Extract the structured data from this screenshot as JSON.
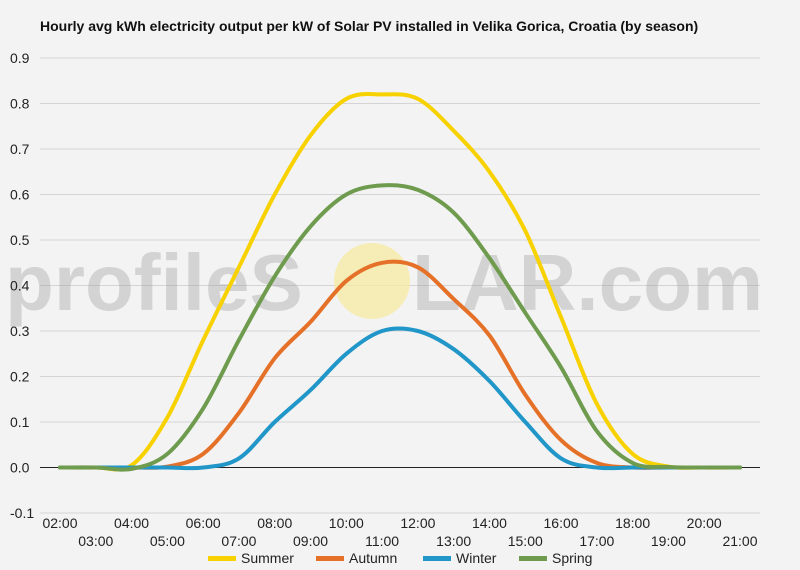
{
  "chart_data": {
    "type": "line",
    "title": "Hourly avg kWh electricity output per kW of Solar PV installed in Velika Gorica, Croatia (by season)",
    "xlabel": "",
    "ylabel": "",
    "x": [
      "02:00",
      "03:00",
      "04:00",
      "05:00",
      "06:00",
      "07:00",
      "08:00",
      "09:00",
      "10:00",
      "11:00",
      "12:00",
      "13:00",
      "14:00",
      "15:00",
      "16:00",
      "17:00",
      "18:00",
      "19:00",
      "20:00",
      "21:00"
    ],
    "xlim": [
      "02:00",
      "21:00"
    ],
    "ylim": [
      -0.1,
      0.9
    ],
    "yticks": [
      "-0.1",
      "0.0",
      "0.1",
      "0.2",
      "0.3",
      "0.4",
      "0.5",
      "0.6",
      "0.7",
      "0.8",
      "0.9"
    ],
    "xticks_upper": [
      "02:00",
      "04:00",
      "06:00",
      "08:00",
      "10:00",
      "12:00",
      "14:00",
      "16:00",
      "18:00",
      "20:00"
    ],
    "xticks_lower": [
      "03:00",
      "05:00",
      "07:00",
      "09:00",
      "11:00",
      "13:00",
      "15:00",
      "17:00",
      "19:00",
      "21:00"
    ],
    "grid": true,
    "legend_position": "bottom",
    "series": [
      {
        "name": "Summer",
        "color": "#f8d100",
        "values": [
          0.0,
          0.0,
          0.005,
          0.11,
          0.28,
          0.44,
          0.6,
          0.73,
          0.81,
          0.82,
          0.81,
          0.74,
          0.65,
          0.52,
          0.33,
          0.14,
          0.03,
          0.002,
          0.0,
          0.0
        ]
      },
      {
        "name": "Autumn",
        "color": "#e57128",
        "values": [
          0.0,
          0.0,
          0.0,
          0.002,
          0.03,
          0.12,
          0.24,
          0.32,
          0.41,
          0.45,
          0.44,
          0.37,
          0.29,
          0.16,
          0.06,
          0.01,
          0.0,
          0.0,
          0.0,
          0.0
        ]
      },
      {
        "name": "Winter",
        "color": "#2196c8",
        "values": [
          0.0,
          0.0,
          0.0,
          0.0,
          0.0,
          0.02,
          0.1,
          0.17,
          0.25,
          0.3,
          0.3,
          0.26,
          0.19,
          0.1,
          0.02,
          0.0,
          0.0,
          0.0,
          0.0,
          0.0
        ]
      },
      {
        "name": "Spring",
        "color": "#6e9b4d",
        "values": [
          0.0,
          0.0,
          -0.003,
          0.03,
          0.13,
          0.28,
          0.42,
          0.53,
          0.6,
          0.62,
          0.61,
          0.56,
          0.46,
          0.34,
          0.22,
          0.08,
          0.01,
          0.001,
          0.0,
          0.0
        ]
      }
    ]
  },
  "watermark": {
    "text_left": "profileS",
    "text_right": "LAR.com",
    "sun_color": "#f7e9a0"
  }
}
